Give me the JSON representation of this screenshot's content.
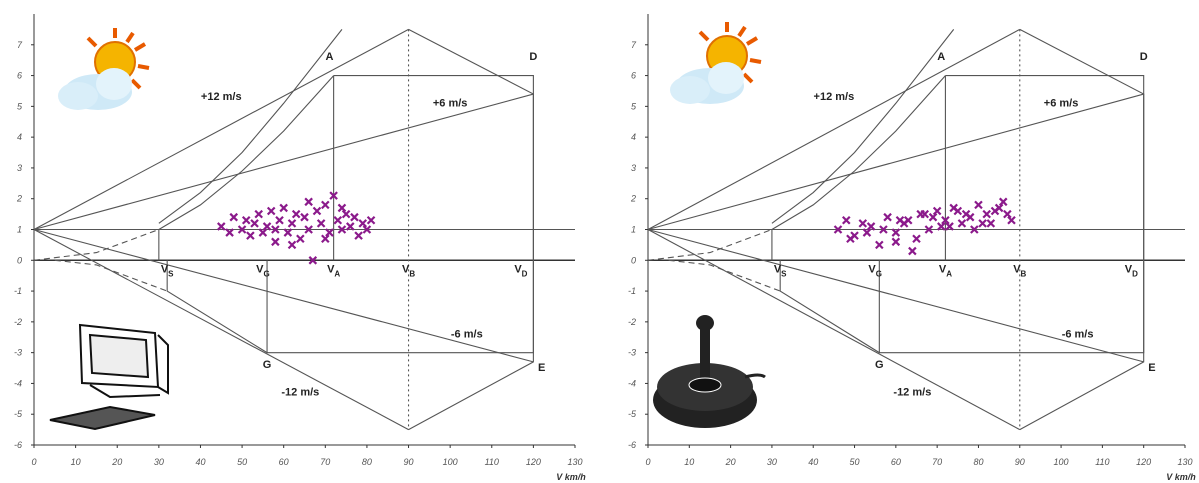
{
  "chart_data": [
    {
      "type": "scatter",
      "x_label": "V km/h",
      "xlim": [
        0,
        130
      ],
      "ylim": [
        -6,
        8
      ],
      "xticks": [
        0,
        10,
        20,
        30,
        40,
        50,
        60,
        70,
        80,
        90,
        100,
        110,
        120,
        130
      ],
      "yticks": [
        -6,
        -5,
        -4,
        -3,
        -2,
        -1,
        0,
        1,
        2,
        3,
        4,
        5,
        6,
        7
      ],
      "points": {
        "color": "#8b1a8b",
        "x": [
          45,
          47,
          48,
          50,
          51,
          52,
          53,
          54,
          55,
          56,
          57,
          58,
          59,
          60,
          61,
          62,
          63,
          64,
          65,
          66,
          67,
          68,
          69,
          70,
          71,
          72,
          73,
          74,
          75,
          76,
          77,
          78,
          79,
          80,
          81,
          58,
          62,
          66,
          70,
          74
        ],
        "y": [
          1.1,
          0.9,
          1.4,
          1.0,
          1.3,
          0.8,
          1.2,
          1.5,
          0.9,
          1.1,
          1.6,
          1.0,
          1.3,
          1.7,
          0.9,
          1.2,
          1.5,
          0.7,
          1.4,
          1.0,
          0.0,
          1.6,
          1.2,
          1.8,
          0.9,
          2.1,
          1.3,
          1.0,
          1.5,
          1.1,
          1.4,
          0.8,
          1.2,
          1.0,
          1.3,
          0.6,
          0.5,
          1.9,
          0.7,
          1.7
        ]
      },
      "lines": [
        {
          "x": [
            0,
            90
          ],
          "y": [
            1,
            7.5
          ],
          "style": "solid"
        },
        {
          "x": [
            0,
            120
          ],
          "y": [
            1,
            5.4
          ],
          "style": "solid"
        },
        {
          "x": [
            0,
            120
          ],
          "y": [
            1,
            -3.3
          ],
          "style": "solid"
        },
        {
          "x": [
            0,
            90
          ],
          "y": [
            1,
            -5.5
          ],
          "style": "solid"
        },
        {
          "x": [
            90,
            120,
            120,
            90
          ],
          "y": [
            7.5,
            5.4,
            -3.3,
            -5.5
          ],
          "style": "solid"
        },
        {
          "x": [
            90,
            90
          ],
          "y": [
            7.5,
            -5.5
          ],
          "style": "dotted"
        },
        {
          "x": [
            0,
            130
          ],
          "y": [
            1,
            1
          ],
          "style": "solid"
        },
        {
          "x": [
            0,
            15,
            30
          ],
          "y": [
            0,
            0.25,
            1
          ],
          "style": "dashed"
        },
        {
          "x": [
            30,
            40,
            50,
            60,
            72
          ],
          "y": [
            1,
            1.8,
            2.9,
            4.2,
            6
          ],
          "style": "solid"
        },
        {
          "x": [
            30,
            40,
            50,
            60,
            74
          ],
          "y": [
            1.2,
            2.2,
            3.5,
            5.1,
            7.5
          ],
          "style": "solid"
        },
        {
          "x": [
            72,
            120,
            120,
            56,
            32,
            32
          ],
          "y": [
            6,
            6,
            -3,
            -3,
            -1,
            0
          ],
          "style": "solid"
        },
        {
          "x": [
            72,
            72
          ],
          "y": [
            6,
            0
          ],
          "style": "solid"
        },
        {
          "x": [
            30,
            30
          ],
          "y": [
            0,
            1
          ],
          "style": "solid"
        },
        {
          "x": [
            56,
            56
          ],
          "y": [
            0,
            -3
          ],
          "style": "solid"
        },
        {
          "x": [
            5,
            15,
            32
          ],
          "y": [
            0,
            -0.15,
            -1
          ],
          "style": "dashed"
        }
      ],
      "annotations": [
        {
          "text": "A",
          "x": 71,
          "y": 6.5
        },
        {
          "text": "D",
          "x": 120,
          "y": 6.5
        },
        {
          "text": "E",
          "x": 122,
          "y": -3.6
        },
        {
          "text": "G",
          "x": 56,
          "y": -3.5
        },
        {
          "text": "+12 m/s",
          "x": 45,
          "y": 5.2
        },
        {
          "text": "+6 m/s",
          "x": 100,
          "y": 5.0
        },
        {
          "text": "-6 m/s",
          "x": 104,
          "y": -2.5
        },
        {
          "text": "-12 m/s",
          "x": 64,
          "y": -4.4
        },
        {
          "text": "V",
          "sub": "S",
          "x": 32,
          "y": -0.4
        },
        {
          "text": "V",
          "sub": "G",
          "x": 55,
          "y": -0.4
        },
        {
          "text": "V",
          "sub": "A",
          "x": 72,
          "y": -0.4
        },
        {
          "text": "V",
          "sub": "B",
          "x": 90,
          "y": -0.4
        },
        {
          "text": "V",
          "sub": "D",
          "x": 117,
          "y": -0.4
        }
      ]
    },
    {
      "type": "scatter",
      "x_label": "V km/h",
      "xlim": [
        0,
        130
      ],
      "ylim": [
        -6,
        8
      ],
      "xticks": [
        0,
        10,
        20,
        30,
        40,
        50,
        60,
        70,
        80,
        90,
        100,
        110,
        120,
        130
      ],
      "yticks": [
        -6,
        -5,
        -4,
        -3,
        -2,
        -1,
        0,
        1,
        2,
        3,
        4,
        5,
        6,
        7
      ],
      "points": {
        "color": "#8b1a8b",
        "x": [
          46,
          48,
          50,
          52,
          54,
          56,
          58,
          60,
          62,
          64,
          66,
          68,
          70,
          72,
          74,
          76,
          78,
          80,
          82,
          84,
          86,
          88,
          57,
          61,
          65,
          69,
          73,
          77,
          81,
          85,
          49,
          53,
          63,
          67,
          71,
          75,
          79,
          83,
          87,
          60
        ],
        "y": [
          1.0,
          1.3,
          0.8,
          1.2,
          1.1,
          0.5,
          1.4,
          0.9,
          1.2,
          0.3,
          1.5,
          1.0,
          1.6,
          1.3,
          1.7,
          1.2,
          1.4,
          1.8,
          1.5,
          1.6,
          1.9,
          1.3,
          1.0,
          1.3,
          0.7,
          1.4,
          1.1,
          1.5,
          1.2,
          1.7,
          0.7,
          0.9,
          1.3,
          1.5,
          1.1,
          1.6,
          1.0,
          1.2,
          1.5,
          0.6
        ]
      },
      "lines": [
        {
          "x": [
            0,
            90
          ],
          "y": [
            1,
            7.5
          ],
          "style": "solid"
        },
        {
          "x": [
            0,
            120
          ],
          "y": [
            1,
            5.4
          ],
          "style": "solid"
        },
        {
          "x": [
            0,
            120
          ],
          "y": [
            1,
            -3.3
          ],
          "style": "solid"
        },
        {
          "x": [
            0,
            90
          ],
          "y": [
            1,
            -5.5
          ],
          "style": "solid"
        },
        {
          "x": [
            90,
            120,
            120,
            90
          ],
          "y": [
            7.5,
            5.4,
            -3.3,
            -5.5
          ],
          "style": "solid"
        },
        {
          "x": [
            90,
            90
          ],
          "y": [
            7.5,
            -5.5
          ],
          "style": "dotted"
        },
        {
          "x": [
            0,
            130
          ],
          "y": [
            1,
            1
          ],
          "style": "solid"
        },
        {
          "x": [
            0,
            15,
            30
          ],
          "y": [
            0,
            0.25,
            1
          ],
          "style": "dashed"
        },
        {
          "x": [
            30,
            40,
            50,
            60,
            72
          ],
          "y": [
            1,
            1.8,
            2.9,
            4.2,
            6
          ],
          "style": "solid"
        },
        {
          "x": [
            30,
            40,
            50,
            60,
            74
          ],
          "y": [
            1.2,
            2.2,
            3.5,
            5.1,
            7.5
          ],
          "style": "solid"
        },
        {
          "x": [
            72,
            120,
            120,
            56,
            32,
            32
          ],
          "y": [
            6,
            6,
            -3,
            -3,
            -1,
            0
          ],
          "style": "solid"
        },
        {
          "x": [
            72,
            72
          ],
          "y": [
            6,
            0
          ],
          "style": "solid"
        },
        {
          "x": [
            30,
            30
          ],
          "y": [
            0,
            1
          ],
          "style": "solid"
        },
        {
          "x": [
            56,
            56
          ],
          "y": [
            0,
            -3
          ],
          "style": "solid"
        },
        {
          "x": [
            5,
            15,
            32
          ],
          "y": [
            0,
            -0.15,
            -1
          ],
          "style": "dashed"
        }
      ],
      "annotations": [
        {
          "text": "A",
          "x": 71,
          "y": 6.5
        },
        {
          "text": "D",
          "x": 120,
          "y": 6.5
        },
        {
          "text": "E",
          "x": 122,
          "y": -3.6
        },
        {
          "text": "G",
          "x": 56,
          "y": -3.5
        },
        {
          "text": "+12 m/s",
          "x": 45,
          "y": 5.2
        },
        {
          "text": "+6 m/s",
          "x": 100,
          "y": 5.0
        },
        {
          "text": "-6 m/s",
          "x": 104,
          "y": -2.5
        },
        {
          "text": "-12 m/s",
          "x": 64,
          "y": -4.4
        },
        {
          "text": "V",
          "sub": "S",
          "x": 32,
          "y": -0.4
        },
        {
          "text": "V",
          "sub": "G",
          "x": 55,
          "y": -0.4
        },
        {
          "text": "V",
          "sub": "A",
          "x": 72,
          "y": -0.4
        },
        {
          "text": "V",
          "sub": "B",
          "x": 90,
          "y": -0.4
        },
        {
          "text": "V",
          "sub": "D",
          "x": 117,
          "y": -0.4
        }
      ]
    }
  ]
}
